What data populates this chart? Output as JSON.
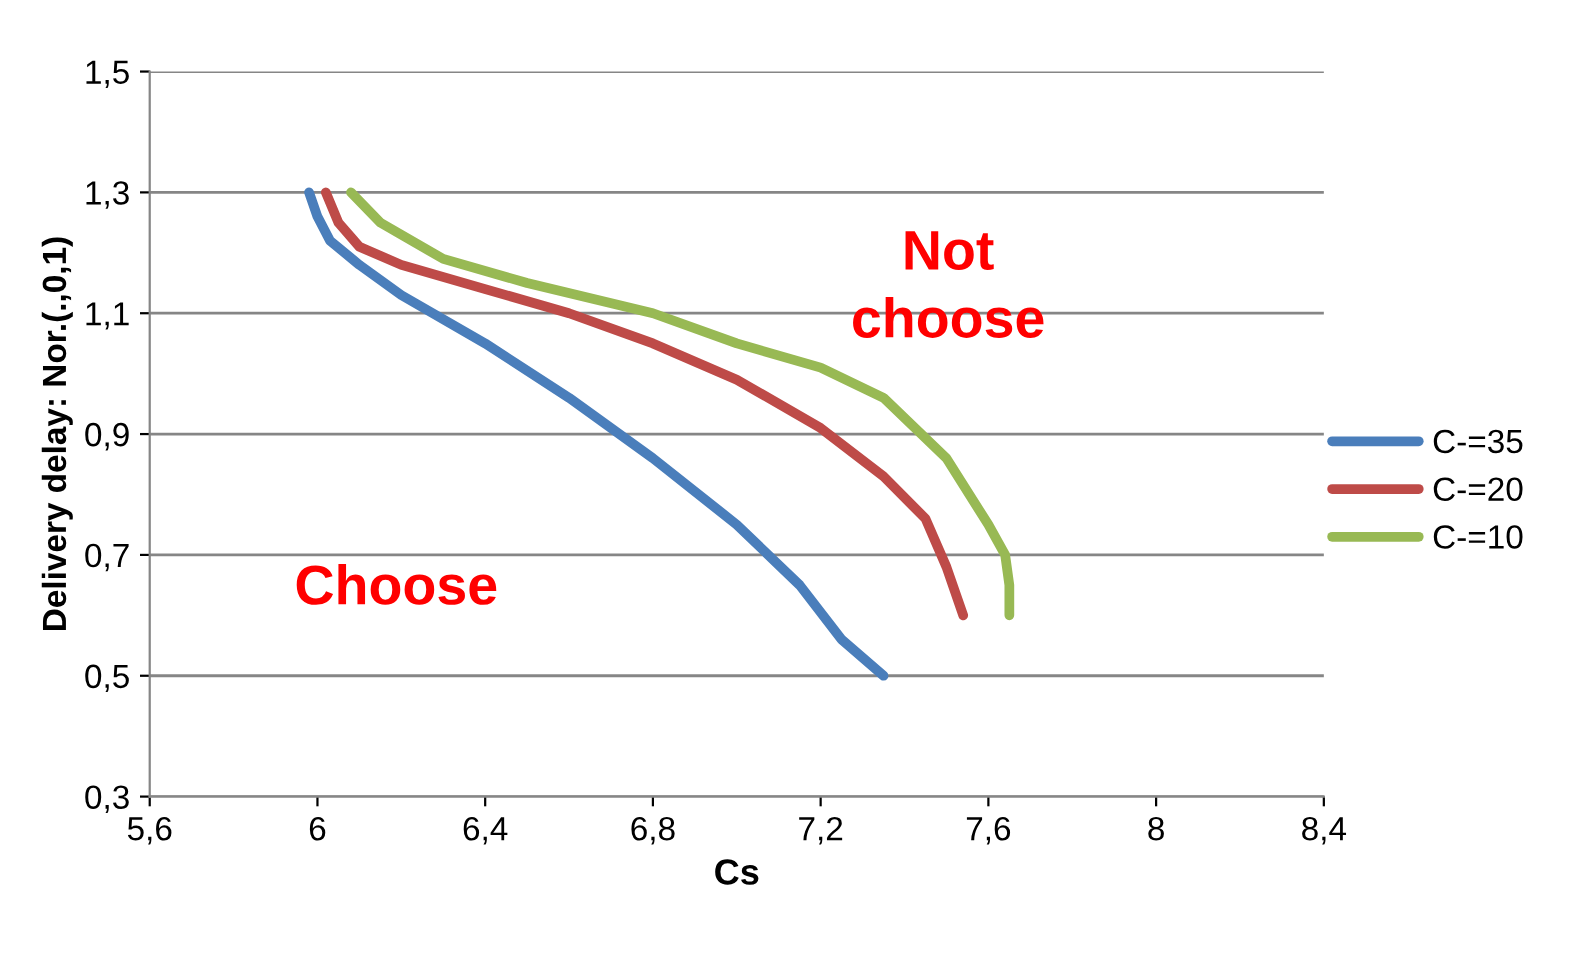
{
  "chart_data": {
    "type": "line",
    "xlabel": "Cs",
    "ylabel": "Delivery delay: Nor.(.,0,1)",
    "xlim": [
      5.6,
      8.4
    ],
    "ylim": [
      0.3,
      1.5
    ],
    "xticks": [
      {
        "value": 5.6,
        "label": "5,6"
      },
      6,
      {
        "value": 6.4,
        "label": "6,4"
      },
      {
        "value": 6.8,
        "label": "6,8"
      },
      {
        "value": 7.2,
        "label": "7,2"
      },
      {
        "value": 7.6,
        "label": "7,6"
      },
      8,
      {
        "value": 8.4,
        "label": "8,4"
      }
    ],
    "yticks": [
      {
        "value": 0.3,
        "label": "0,3"
      },
      {
        "value": 0.5,
        "label": "0,5"
      },
      {
        "value": 0.7,
        "label": "0,7"
      },
      {
        "value": 0.9,
        "label": "0,9"
      },
      {
        "value": 1.1,
        "label": "1,1"
      },
      {
        "value": 1.3,
        "label": "1,3"
      },
      {
        "value": 1.5,
        "label": "1,5"
      }
    ],
    "grid": "y",
    "legend": "right",
    "marker": "none",
    "series": [
      {
        "name": "C-=35",
        "color": "#4a7ebb",
        "x": [
          5.98,
          6.0,
          6.03,
          6.1,
          6.2,
          6.4,
          6.6,
          6.8,
          7.0,
          7.15,
          7.25,
          7.35
        ],
        "values": [
          1.3,
          1.26,
          1.22,
          1.18,
          1.13,
          1.05,
          0.96,
          0.86,
          0.75,
          0.65,
          0.56,
          0.5
        ]
      },
      {
        "name": "C-=20",
        "color": "#be4b48",
        "x": [
          6.02,
          6.05,
          6.1,
          6.2,
          6.4,
          6.6,
          6.8,
          7.0,
          7.2,
          7.35,
          7.45,
          7.5,
          7.54
        ],
        "values": [
          1.3,
          1.25,
          1.21,
          1.18,
          1.14,
          1.1,
          1.05,
          0.99,
          0.91,
          0.83,
          0.76,
          0.68,
          0.6
        ]
      },
      {
        "name": "C-=10",
        "color": "#98b954",
        "x": [
          6.08,
          6.15,
          6.3,
          6.5,
          6.8,
          7.0,
          7.2,
          7.35,
          7.5,
          7.6,
          7.64,
          7.65,
          7.65
        ],
        "values": [
          1.3,
          1.25,
          1.19,
          1.15,
          1.1,
          1.05,
          1.01,
          0.96,
          0.86,
          0.75,
          0.7,
          0.65,
          0.6
        ]
      }
    ],
    "annotations": [
      "Not\nchoose",
      "Choose"
    ]
  }
}
